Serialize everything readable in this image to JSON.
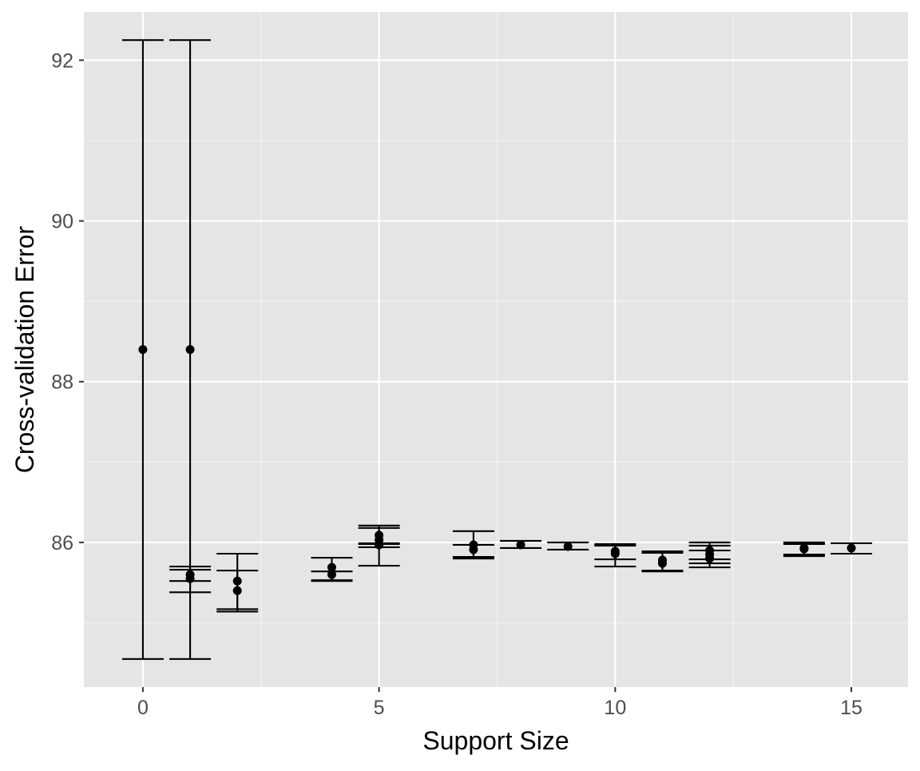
{
  "chart_data": {
    "type": "scatter",
    "title": "",
    "xlabel": "Support Size",
    "ylabel": "Cross-validation Error",
    "xlim": [
      -1.25,
      16.2
    ],
    "ylim": [
      84.2,
      92.6
    ],
    "x_ticks": [
      0,
      5,
      10,
      15
    ],
    "y_ticks": [
      86,
      88,
      90,
      92
    ],
    "grid": true,
    "legend": "none",
    "colors": {
      "panel": "#e5e5e5",
      "grid_major": "#ffffff",
      "grid_minor": "#f2f2f2",
      "marks": "#000000",
      "tick_label": "#4d4d4d"
    },
    "points": [
      {
        "x": 0,
        "y": 88.4,
        "lo": 84.55,
        "hi": 92.25
      },
      {
        "x": 1,
        "y": 88.4,
        "lo": 84.55,
        "hi": 92.25
      },
      {
        "x": 1,
        "y": 85.6,
        "lo": 85.52,
        "hi": 85.7
      },
      {
        "x": 1,
        "y": 85.55,
        "lo": 85.38,
        "hi": 85.66
      },
      {
        "x": 2,
        "y": 85.52,
        "lo": 85.17,
        "hi": 85.86
      },
      {
        "x": 2,
        "y": 85.4,
        "lo": 85.14,
        "hi": 85.65
      },
      {
        "x": 4,
        "y": 85.69,
        "lo": 85.53,
        "hi": 85.81
      },
      {
        "x": 4,
        "y": 85.6,
        "lo": 85.52,
        "hi": 85.64
      },
      {
        "x": 5,
        "y": 86.09,
        "lo": 85.98,
        "hi": 86.21
      },
      {
        "x": 5,
        "y": 86.03,
        "lo": 85.94,
        "hi": 86.18
      },
      {
        "x": 5,
        "y": 85.97,
        "lo": 85.71,
        "hi": 85.99
      },
      {
        "x": 7,
        "y": 85.97,
        "lo": 85.82,
        "hi": 86.14
      },
      {
        "x": 7,
        "y": 85.91,
        "lo": 85.8,
        "hi": 85.97
      },
      {
        "x": 8,
        "y": 85.97,
        "lo": 85.93,
        "hi": 86.02
      },
      {
        "x": 9,
        "y": 85.95,
        "lo": 85.91,
        "hi": 86.0
      },
      {
        "x": 10,
        "y": 85.89,
        "lo": 85.79,
        "hi": 85.98
      },
      {
        "x": 10,
        "y": 85.86,
        "lo": 85.7,
        "hi": 85.96
      },
      {
        "x": 11,
        "y": 85.78,
        "lo": 85.64,
        "hi": 85.89
      },
      {
        "x": 11,
        "y": 85.74,
        "lo": 85.65,
        "hi": 85.87
      },
      {
        "x": 12,
        "y": 85.9,
        "lo": 85.79,
        "hi": 86.0
      },
      {
        "x": 12,
        "y": 85.85,
        "lo": 85.74,
        "hi": 85.96
      },
      {
        "x": 12,
        "y": 85.8,
        "lo": 85.69,
        "hi": 85.9
      },
      {
        "x": 14,
        "y": 85.93,
        "lo": 85.83,
        "hi": 86.0
      },
      {
        "x": 14,
        "y": 85.92,
        "lo": 85.85,
        "hi": 85.98
      },
      {
        "x": 15,
        "y": 85.93,
        "lo": 85.86,
        "hi": 85.99
      }
    ]
  }
}
